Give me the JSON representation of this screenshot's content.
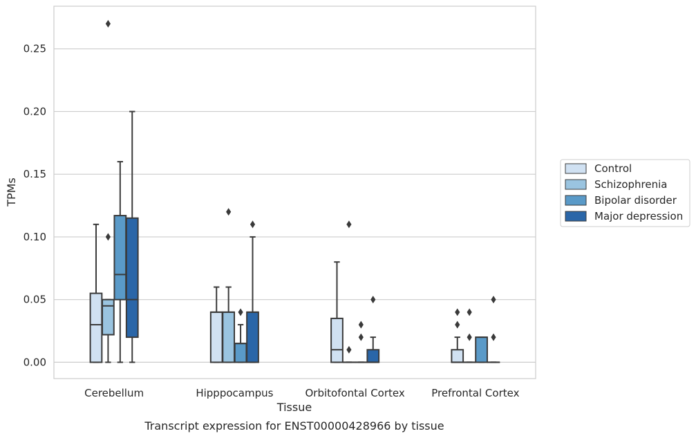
{
  "caption": "Transcript expression for ENST00000428966 by tissue",
  "chart_data": {
    "type": "box",
    "title": "",
    "xlabel": "Tissue",
    "ylabel": "TPMs",
    "ylim": [
      -0.013,
      0.284
    ],
    "yticks": [
      0.0,
      0.05,
      0.1,
      0.15,
      0.2,
      0.25
    ],
    "ytick_labels": [
      "0.00",
      "0.05",
      "0.10",
      "0.15",
      "0.20",
      "0.25"
    ],
    "grid": "horizontal",
    "legend_position": "right-outside",
    "categories": [
      "Cerebellum",
      "Hipppocampus",
      "Orbitofontal Cortex",
      "Prefrontal Cortex"
    ],
    "series": [
      {
        "name": "Control",
        "color": "#d0e1f2",
        "boxes": [
          {
            "whisker_low": 0.0,
            "q1": 0.0,
            "median": 0.03,
            "q3": 0.055,
            "whisker_high": 0.11,
            "outliers": []
          },
          {
            "whisker_low": 0.0,
            "q1": 0.0,
            "median": 0.04,
            "q3": 0.04,
            "whisker_high": 0.06,
            "outliers": []
          },
          {
            "whisker_low": 0.0,
            "q1": 0.0,
            "median": 0.01,
            "q3": 0.035,
            "whisker_high": 0.08,
            "outliers": []
          },
          {
            "whisker_low": 0.0,
            "q1": 0.0,
            "median": 0.0,
            "q3": 0.01,
            "whisker_high": 0.02,
            "outliers": [
              0.03,
              0.04
            ]
          }
        ]
      },
      {
        "name": "Schizophrenia",
        "color": "#9ac4e0",
        "boxes": [
          {
            "whisker_low": 0.0,
            "q1": 0.022,
            "median": 0.045,
            "q3": 0.05,
            "whisker_high": 0.05,
            "outliers": [
              0.1,
              0.27
            ]
          },
          {
            "whisker_low": 0.0,
            "q1": 0.0,
            "median": 0.04,
            "q3": 0.04,
            "whisker_high": 0.06,
            "outliers": [
              0.12
            ]
          },
          {
            "whisker_low": 0.0,
            "q1": 0.0,
            "median": 0.0,
            "q3": 0.0,
            "whisker_high": 0.0,
            "outliers": [
              0.01,
              0.11
            ]
          },
          {
            "whisker_low": 0.0,
            "q1": 0.0,
            "median": 0.0,
            "q3": 0.0,
            "whisker_high": 0.0,
            "outliers": [
              0.02,
              0.04
            ]
          }
        ]
      },
      {
        "name": "Bipolar disorder",
        "color": "#5a9ac8",
        "boxes": [
          {
            "whisker_low": 0.0,
            "q1": 0.05,
            "median": 0.07,
            "q3": 0.117,
            "whisker_high": 0.16,
            "outliers": []
          },
          {
            "whisker_low": 0.0,
            "q1": 0.0,
            "median": 0.015,
            "q3": 0.015,
            "whisker_high": 0.03,
            "outliers": [
              0.04
            ]
          },
          {
            "whisker_low": 0.0,
            "q1": 0.0,
            "median": 0.0,
            "q3": 0.0,
            "whisker_high": 0.0,
            "outliers": [
              0.02,
              0.03
            ]
          },
          {
            "whisker_low": 0.0,
            "q1": 0.0,
            "median": 0.02,
            "q3": 0.02,
            "whisker_high": 0.02,
            "outliers": []
          }
        ]
      },
      {
        "name": "Major depression",
        "color": "#2a66a8",
        "boxes": [
          {
            "whisker_low": 0.0,
            "q1": 0.02,
            "median": 0.05,
            "q3": 0.115,
            "whisker_high": 0.2,
            "outliers": []
          },
          {
            "whisker_low": 0.0,
            "q1": 0.0,
            "median": 0.04,
            "q3": 0.04,
            "whisker_high": 0.1,
            "outliers": [
              0.11
            ]
          },
          {
            "whisker_low": 0.0,
            "q1": 0.0,
            "median": 0.0,
            "q3": 0.01,
            "whisker_high": 0.02,
            "outliers": [
              0.05
            ]
          },
          {
            "whisker_low": 0.0,
            "q1": 0.0,
            "median": 0.0,
            "q3": 0.0,
            "whisker_high": 0.0,
            "outliers": [
              0.02,
              0.05
            ]
          }
        ]
      }
    ]
  }
}
